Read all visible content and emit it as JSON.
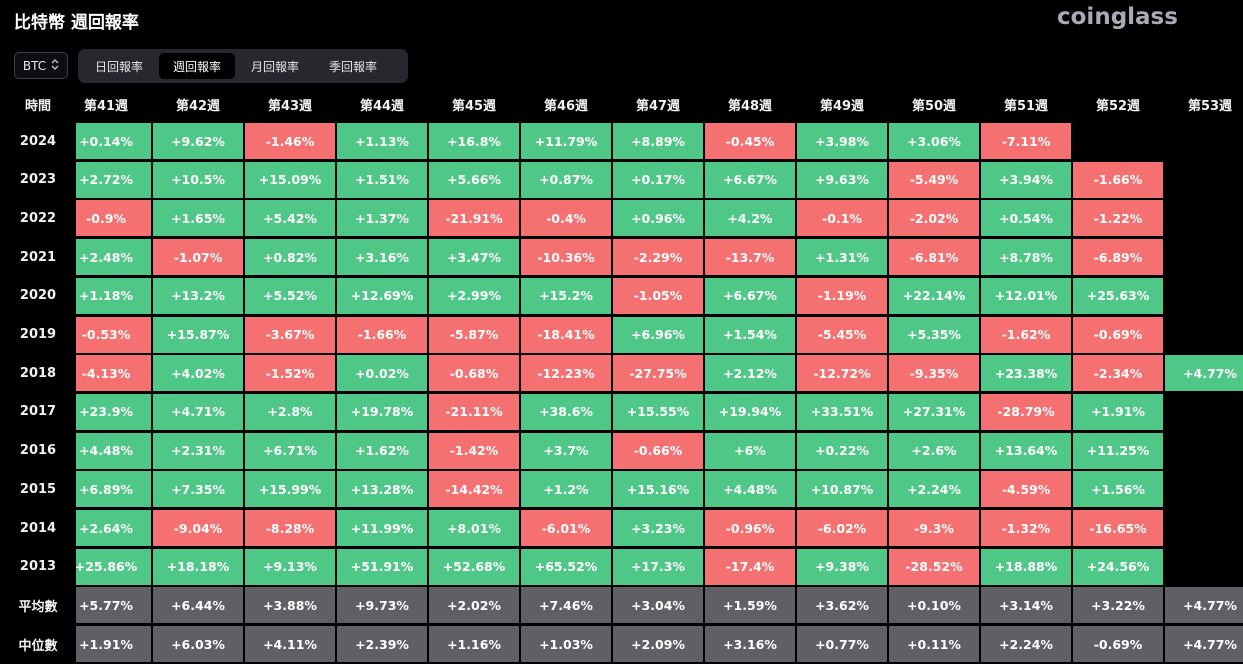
{
  "header": {
    "title": "比特幣 週回報率",
    "logo_text": "coinglass"
  },
  "coin_select": {
    "value": "BTC",
    "icon": "chevron-updown-icon"
  },
  "tabs": [
    {
      "label": "日回報率",
      "active": false
    },
    {
      "label": "週回報率",
      "active": true
    },
    {
      "label": "月回報率",
      "active": false
    },
    {
      "label": "季回報率",
      "active": false
    }
  ],
  "colors": {
    "positive": "#4fc787",
    "negative": "#f47071",
    "summary": "#5f6064",
    "background": "#000000"
  },
  "table": {
    "corner_label": "時間",
    "columns": [
      "第41週",
      "第42週",
      "第43週",
      "第44週",
      "第45週",
      "第46週",
      "第47週",
      "第48週",
      "第49週",
      "第50週",
      "第51週",
      "第52週",
      "第53週"
    ],
    "rows": [
      {
        "label": "2024",
        "cells": [
          "+0.14%",
          "+9.62%",
          "-1.46%",
          "+1.13%",
          "+16.8%",
          "+11.79%",
          "+8.89%",
          "-0.45%",
          "+3.98%",
          "+3.06%",
          "-7.11%",
          "",
          ""
        ]
      },
      {
        "label": "2023",
        "cells": [
          "+2.72%",
          "+10.5%",
          "+15.09%",
          "+1.51%",
          "+5.66%",
          "+0.87%",
          "+0.17%",
          "+6.67%",
          "+9.63%",
          "-5.49%",
          "+3.94%",
          "-1.66%",
          ""
        ]
      },
      {
        "label": "2022",
        "cells": [
          "-0.9%",
          "+1.65%",
          "+5.42%",
          "+1.37%",
          "-21.91%",
          "-0.4%",
          "+0.96%",
          "+4.2%",
          "-0.1%",
          "-2.02%",
          "+0.54%",
          "-1.22%",
          ""
        ]
      },
      {
        "label": "2021",
        "cells": [
          "+2.48%",
          "-1.07%",
          "+0.82%",
          "+3.16%",
          "+3.47%",
          "-10.36%",
          "-2.29%",
          "-13.7%",
          "+1.31%",
          "-6.81%",
          "+8.78%",
          "-6.89%",
          ""
        ]
      },
      {
        "label": "2020",
        "cells": [
          "+1.18%",
          "+13.2%",
          "+5.52%",
          "+12.69%",
          "+2.99%",
          "+15.2%",
          "-1.05%",
          "+6.67%",
          "-1.19%",
          "+22.14%",
          "+12.01%",
          "+25.63%",
          ""
        ]
      },
      {
        "label": "2019",
        "cells": [
          "-0.53%",
          "+15.87%",
          "-3.67%",
          "-1.66%",
          "-5.87%",
          "-18.41%",
          "+6.96%",
          "+1.54%",
          "-5.45%",
          "+5.35%",
          "-1.62%",
          "-0.69%",
          ""
        ]
      },
      {
        "label": "2018",
        "cells": [
          "-4.13%",
          "+4.02%",
          "-1.52%",
          "+0.02%",
          "-0.68%",
          "-12.23%",
          "-27.75%",
          "+2.12%",
          "-12.72%",
          "-9.35%",
          "+23.38%",
          "-2.34%",
          "+4.77%"
        ]
      },
      {
        "label": "2017",
        "cells": [
          "+23.9%",
          "+4.71%",
          "+2.8%",
          "+19.78%",
          "-21.11%",
          "+38.6%",
          "+15.55%",
          "+19.94%",
          "+33.51%",
          "+27.31%",
          "-28.79%",
          "+1.91%",
          ""
        ]
      },
      {
        "label": "2016",
        "cells": [
          "+4.48%",
          "+2.31%",
          "+6.71%",
          "+1.62%",
          "-1.42%",
          "+3.7%",
          "-0.66%",
          "+6%",
          "+0.22%",
          "+2.6%",
          "+13.64%",
          "+11.25%",
          ""
        ]
      },
      {
        "label": "2015",
        "cells": [
          "+6.89%",
          "+7.35%",
          "+15.99%",
          "+13.28%",
          "-14.42%",
          "+1.2%",
          "+15.16%",
          "+4.48%",
          "+10.87%",
          "+2.24%",
          "-4.59%",
          "+1.56%",
          ""
        ]
      },
      {
        "label": "2014",
        "cells": [
          "+2.64%",
          "-9.04%",
          "-8.28%",
          "+11.99%",
          "+8.01%",
          "-6.01%",
          "+3.23%",
          "-0.96%",
          "-6.02%",
          "-9.3%",
          "-1.32%",
          "-16.65%",
          ""
        ]
      },
      {
        "label": "2013",
        "cells": [
          "+25.86%",
          "+18.18%",
          "+9.13%",
          "+51.91%",
          "+52.68%",
          "+65.52%",
          "+17.3%",
          "-17.4%",
          "+9.38%",
          "-28.52%",
          "+18.88%",
          "+24.56%",
          ""
        ]
      }
    ],
    "summary_rows": [
      {
        "label": "平均數",
        "cells": [
          "+5.77%",
          "+6.44%",
          "+3.88%",
          "+9.73%",
          "+2.02%",
          "+7.46%",
          "+3.04%",
          "+1.59%",
          "+3.62%",
          "+0.10%",
          "+3.14%",
          "+3.22%",
          "+4.77%"
        ]
      },
      {
        "label": "中位數",
        "cells": [
          "+1.91%",
          "+6.03%",
          "+4.11%",
          "+2.39%",
          "+1.16%",
          "+1.03%",
          "+2.09%",
          "+3.16%",
          "+0.77%",
          "+0.11%",
          "+2.24%",
          "-0.69%",
          "+4.77%"
        ]
      }
    ]
  }
}
